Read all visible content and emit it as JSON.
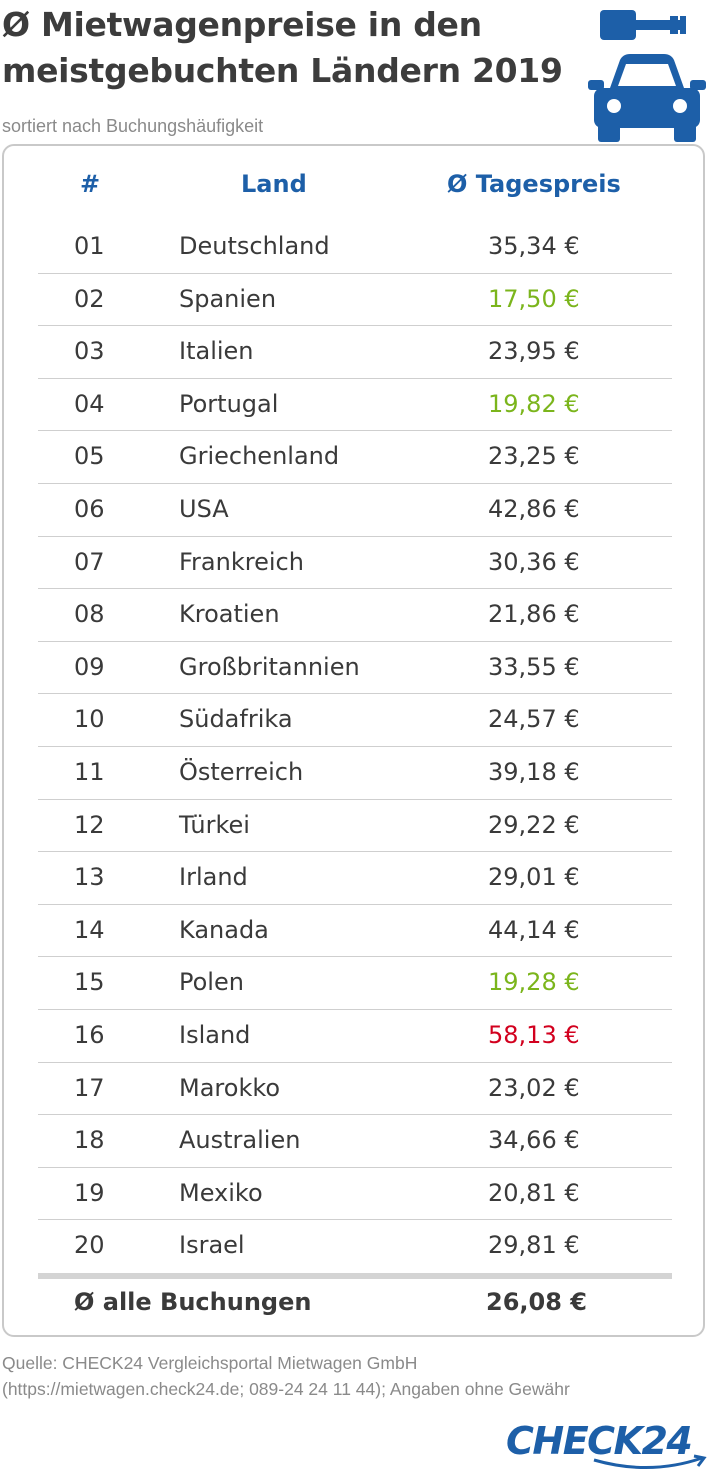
{
  "header": {
    "title_line1": "Ø Mietwagenpreise in den",
    "title_line2": "meistgebuchten Ländern 2019",
    "subtitle": "sortiert nach Buchungshäufigkeit"
  },
  "icons": {
    "key": "car-key-icon",
    "car": "car-icon"
  },
  "colors": {
    "accent": "#1d5fa8",
    "cheap": "#7bb51c",
    "expensive": "#d2001e"
  },
  "table": {
    "columns": [
      "#",
      "Land",
      "Ø Tagespreis"
    ],
    "rows": [
      {
        "num": "01",
        "land": "Deutschland",
        "price": "35,34 €",
        "highlight": ""
      },
      {
        "num": "02",
        "land": "Spanien",
        "price": "17,50 €",
        "highlight": "green"
      },
      {
        "num": "03",
        "land": "Italien",
        "price": "23,95 €",
        "highlight": ""
      },
      {
        "num": "04",
        "land": "Portugal",
        "price": "19,82 €",
        "highlight": "green"
      },
      {
        "num": "05",
        "land": "Griechenland",
        "price": "23,25 €",
        "highlight": ""
      },
      {
        "num": "06",
        "land": "USA",
        "price": "42,86 €",
        "highlight": ""
      },
      {
        "num": "07",
        "land": "Frankreich",
        "price": "30,36 €",
        "highlight": ""
      },
      {
        "num": "08",
        "land": "Kroatien",
        "price": "21,86 €",
        "highlight": ""
      },
      {
        "num": "09",
        "land": "Großbritannien",
        "price": "33,55 €",
        "highlight": ""
      },
      {
        "num": "10",
        "land": "Südafrika",
        "price": "24,57 €",
        "highlight": ""
      },
      {
        "num": "11",
        "land": "Österreich",
        "price": "39,18 €",
        "highlight": ""
      },
      {
        "num": "12",
        "land": "Türkei",
        "price": "29,22 €",
        "highlight": ""
      },
      {
        "num": "13",
        "land": "Irland",
        "price": "29,01 €",
        "highlight": ""
      },
      {
        "num": "14",
        "land": "Kanada",
        "price": "44,14 €",
        "highlight": ""
      },
      {
        "num": "15",
        "land": "Polen",
        "price": "19,28 €",
        "highlight": "green"
      },
      {
        "num": "16",
        "land": "Island",
        "price": "58,13 €",
        "highlight": "red"
      },
      {
        "num": "17",
        "land": "Marokko",
        "price": "23,02 €",
        "highlight": ""
      },
      {
        "num": "18",
        "land": "Australien",
        "price": "34,66 €",
        "highlight": ""
      },
      {
        "num": "19",
        "land": "Mexiko",
        "price": "20,81 €",
        "highlight": ""
      },
      {
        "num": "20",
        "land": "Israel",
        "price": "29,81 €",
        "highlight": ""
      }
    ],
    "total_label": "Ø alle Buchungen",
    "total_value": "26,08 €"
  },
  "footer": {
    "source_line1": "Quelle: CHECK24 Vergleichsportal Mietwagen GmbH",
    "source_line2": "(https://mietwagen.check24.de; 089-24 24 11 44); Angaben ohne Gewähr",
    "logo_text": "CHECK24"
  }
}
